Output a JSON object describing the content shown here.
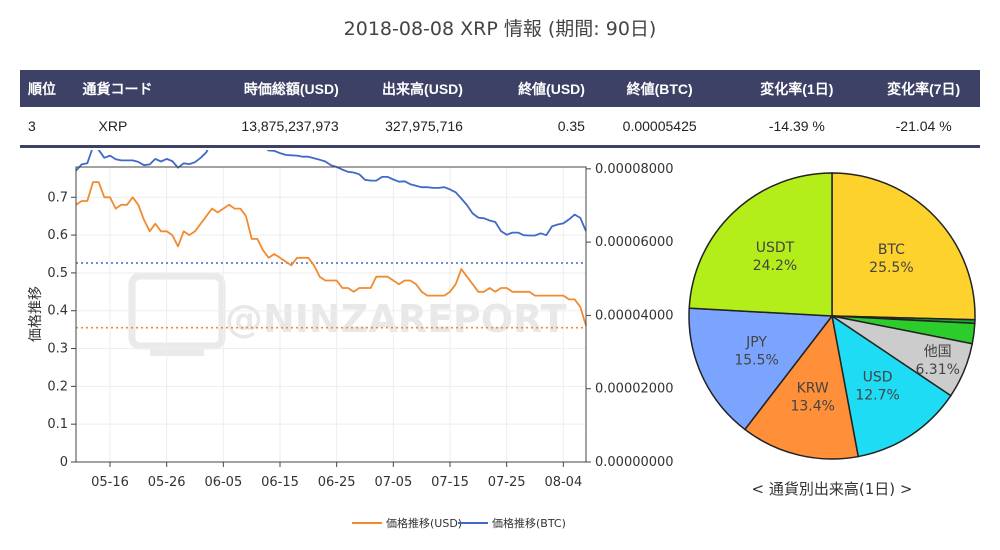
{
  "title": "2018-08-08 XRP 情報 (期間: 90日)",
  "table": {
    "headers": [
      "順位",
      "通貨コード",
      "時価総額(USD)",
      "出来高(USD)",
      "終値(USD)",
      "終値(BTC)",
      "変化率(1日)",
      "変化率(7日)"
    ],
    "row": [
      "3",
      "XRP",
      "13,875,237,973",
      "327,975,716",
      "0.35",
      "0.00005425",
      "-14.39 %",
      "-21.04 %"
    ],
    "header_bg": "#3d4166",
    "negative_color": "#d62728"
  },
  "watermark": "@NINZAREPORT",
  "chart_data": [
    {
      "type": "line",
      "ylabel": "価格推移",
      "x_ticks": [
        "05-16",
        "05-26",
        "06-05",
        "06-15",
        "06-25",
        "07-05",
        "07-15",
        "07-25",
        "08-04"
      ],
      "left_axis": {
        "range": [
          0,
          0.78
        ],
        "ticks": [
          "0",
          "0.1",
          "0.2",
          "0.3",
          "0.4",
          "0.5",
          "0.6",
          "0.7"
        ]
      },
      "right_axis": {
        "range": [
          0,
          8.05e-05
        ],
        "ticks": [
          "0.00000000",
          "0.00002000",
          "0.00004000",
          "0.00006000",
          "0.00008000"
        ]
      },
      "x_range": [
        "2018-05-10",
        "2018-08-08"
      ],
      "legend_position": "bottom",
      "series": [
        {
          "name": "価格推移(USD)",
          "color": "#f28a30",
          "axis": "left",
          "x": [
            "2018-05-10",
            "2018-05-11",
            "2018-05-12",
            "2018-05-13",
            "2018-05-14",
            "2018-05-15",
            "2018-05-16",
            "2018-05-17",
            "2018-05-18",
            "2018-05-19",
            "2018-05-20",
            "2018-05-21",
            "2018-05-22",
            "2018-05-23",
            "2018-05-24",
            "2018-05-25",
            "2018-05-26",
            "2018-05-27",
            "2018-05-28",
            "2018-05-29",
            "2018-05-30",
            "2018-05-31",
            "2018-06-01",
            "2018-06-02",
            "2018-06-03",
            "2018-06-04",
            "2018-06-05",
            "2018-06-06",
            "2018-06-07",
            "2018-06-08",
            "2018-06-09",
            "2018-06-10",
            "2018-06-11",
            "2018-06-12",
            "2018-06-13",
            "2018-06-14",
            "2018-06-15",
            "2018-06-16",
            "2018-06-17",
            "2018-06-18",
            "2018-06-19",
            "2018-06-20",
            "2018-06-21",
            "2018-06-22",
            "2018-06-23",
            "2018-06-24",
            "2018-06-25",
            "2018-06-26",
            "2018-06-27",
            "2018-06-28",
            "2018-06-29",
            "2018-06-30",
            "2018-07-01",
            "2018-07-02",
            "2018-07-03",
            "2018-07-04",
            "2018-07-05",
            "2018-07-06",
            "2018-07-07",
            "2018-07-08",
            "2018-07-09",
            "2018-07-10",
            "2018-07-11",
            "2018-07-12",
            "2018-07-13",
            "2018-07-14",
            "2018-07-15",
            "2018-07-16",
            "2018-07-17",
            "2018-07-18",
            "2018-07-19",
            "2018-07-20",
            "2018-07-21",
            "2018-07-22",
            "2018-07-23",
            "2018-07-24",
            "2018-07-25",
            "2018-07-26",
            "2018-07-27",
            "2018-07-28",
            "2018-07-29",
            "2018-07-30",
            "2018-07-31",
            "2018-08-01",
            "2018-08-02",
            "2018-08-03",
            "2018-08-04",
            "2018-08-05",
            "2018-08-06",
            "2018-08-07",
            "2018-08-08"
          ],
          "y": [
            0.68,
            0.69,
            0.69,
            0.74,
            0.74,
            0.7,
            0.7,
            0.67,
            0.68,
            0.68,
            0.7,
            0.68,
            0.64,
            0.61,
            0.63,
            0.61,
            0.61,
            0.6,
            0.57,
            0.61,
            0.6,
            0.61,
            0.63,
            0.65,
            0.67,
            0.66,
            0.67,
            0.68,
            0.67,
            0.67,
            0.65,
            0.59,
            0.59,
            0.56,
            0.54,
            0.55,
            0.54,
            0.53,
            0.52,
            0.54,
            0.54,
            0.54,
            0.52,
            0.49,
            0.48,
            0.48,
            0.48,
            0.46,
            0.46,
            0.45,
            0.46,
            0.46,
            0.46,
            0.49,
            0.49,
            0.49,
            0.48,
            0.47,
            0.48,
            0.48,
            0.47,
            0.45,
            0.44,
            0.44,
            0.44,
            0.44,
            0.45,
            0.47,
            0.51,
            0.49,
            0.47,
            0.45,
            0.45,
            0.46,
            0.45,
            0.46,
            0.46,
            0.45,
            0.45,
            0.45,
            0.45,
            0.44,
            0.44,
            0.44,
            0.44,
            0.44,
            0.44,
            0.43,
            0.43,
            0.41,
            0.36
          ]
        },
        {
          "name": "価格推移(BTC)",
          "color": "#4169c8",
          "axis": "right",
          "x": [
            "2018-05-10",
            "2018-05-11",
            "2018-05-12",
            "2018-05-13",
            "2018-05-14",
            "2018-05-15",
            "2018-05-16",
            "2018-05-17",
            "2018-05-18",
            "2018-05-19",
            "2018-05-20",
            "2018-05-21",
            "2018-05-22",
            "2018-05-23",
            "2018-05-24",
            "2018-05-25",
            "2018-05-26",
            "2018-05-27",
            "2018-05-28",
            "2018-05-29",
            "2018-05-30",
            "2018-05-31",
            "2018-06-01",
            "2018-06-02",
            "2018-06-03",
            "2018-06-04",
            "2018-06-05",
            "2018-06-06",
            "2018-06-07",
            "2018-06-08",
            "2018-06-09",
            "2018-06-10",
            "2018-06-11",
            "2018-06-12",
            "2018-06-13",
            "2018-06-14",
            "2018-06-15",
            "2018-06-16",
            "2018-06-17",
            "2018-06-18",
            "2018-06-19",
            "2018-06-20",
            "2018-06-21",
            "2018-06-22",
            "2018-06-23",
            "2018-06-24",
            "2018-06-25",
            "2018-06-26",
            "2018-06-27",
            "2018-06-28",
            "2018-06-29",
            "2018-06-30",
            "2018-07-01",
            "2018-07-02",
            "2018-07-03",
            "2018-07-04",
            "2018-07-05",
            "2018-07-06",
            "2018-07-07",
            "2018-07-08",
            "2018-07-09",
            "2018-07-10",
            "2018-07-11",
            "2018-07-12",
            "2018-07-13",
            "2018-07-14",
            "2018-07-15",
            "2018-07-16",
            "2018-07-17",
            "2018-07-18",
            "2018-07-19",
            "2018-07-20",
            "2018-07-21",
            "2018-07-22",
            "2018-07-23",
            "2018-07-24",
            "2018-07-25",
            "2018-07-26",
            "2018-07-27",
            "2018-07-28",
            "2018-07-29",
            "2018-07-30",
            "2018-07-31",
            "2018-08-01",
            "2018-08-02",
            "2018-08-03",
            "2018-08-04",
            "2018-08-05",
            "2018-08-06",
            "2018-08-07",
            "2018-08-08"
          ],
          "y": [
            7.95e-05,
            8.12e-05,
            8.15e-05,
            8.6e-05,
            8.52e-05,
            8.3e-05,
            8.36e-05,
            8.26e-05,
            8.23e-05,
            8.23e-05,
            8.23e-05,
            8.19e-05,
            8.1e-05,
            8.12e-05,
            8.27e-05,
            8.2e-05,
            8.27e-05,
            8.21e-05,
            8.03e-05,
            8.15e-05,
            8.13e-05,
            8.18e-05,
            8.3e-05,
            8.45e-05,
            8.75e-05,
            8.8e-05,
            8.85e-05,
            8.82e-05,
            8.8e-05,
            8.82e-05,
            8.75e-05,
            8.7e-05,
            8.7e-05,
            8.6e-05,
            8.5e-05,
            8.49e-05,
            8.43e-05,
            8.38e-05,
            8.37e-05,
            8.36e-05,
            8.33e-05,
            8.33e-05,
            8.29e-05,
            8.25e-05,
            8.2e-05,
            8.1e-05,
            8.05e-05,
            7.98e-05,
            7.92e-05,
            7.9e-05,
            7.85e-05,
            7.7e-05,
            7.68e-05,
            7.68e-05,
            7.78e-05,
            7.78e-05,
            7.71e-05,
            7.65e-05,
            7.66e-05,
            7.58e-05,
            7.54e-05,
            7.5e-05,
            7.5e-05,
            7.48e-05,
            7.48e-05,
            7.5e-05,
            7.44e-05,
            7.36e-05,
            7.19e-05,
            7.01e-05,
            6.78e-05,
            6.67e-05,
            6.65e-05,
            6.59e-05,
            6.55e-05,
            6.3e-05,
            6.2e-05,
            6.26e-05,
            6.26e-05,
            6.19e-05,
            6.18e-05,
            6.18e-05,
            6.24e-05,
            6.19e-05,
            6.43e-05,
            6.48e-05,
            6.51e-05,
            6.62e-05,
            6.75e-05,
            6.66e-05,
            6.3e-05
          ]
        }
      ],
      "reference_lines": [
        {
          "series": "価格推移(USD)",
          "axis": "left",
          "value": 0.355,
          "color": "#f28a30",
          "style": "dotted"
        },
        {
          "series": "価格推移(BTC)",
          "axis": "right",
          "value": 5.43e-05,
          "color": "#4169c8",
          "style": "dotted"
        }
      ]
    },
    {
      "type": "pie",
      "title": "< 通貨別出来高(1日) >",
      "slices": [
        {
          "label": "BTC",
          "value": 25.5,
          "pct_label": "25.5%",
          "color": "#fdd22c"
        },
        {
          "label": "",
          "value": 0.4,
          "pct_label": "",
          "color": "#17a63a"
        },
        {
          "label": "",
          "value": 2.3,
          "pct_label": "",
          "color": "#2ccc2c"
        },
        {
          "label": "他国",
          "value": 6.31,
          "pct_label": "6.31%",
          "color": "#cccccc"
        },
        {
          "label": "USD",
          "value": 12.7,
          "pct_label": "12.7%",
          "color": "#1fdcf5"
        },
        {
          "label": "KRW",
          "value": 13.4,
          "pct_label": "13.4%",
          "color": "#ff8f38"
        },
        {
          "label": "JPY",
          "value": 15.5,
          "pct_label": "15.5%",
          "color": "#7ba4ff"
        },
        {
          "label": "USDT",
          "value": 24.2,
          "pct_label": "24.2%",
          "color": "#b3ee1a"
        }
      ]
    }
  ]
}
